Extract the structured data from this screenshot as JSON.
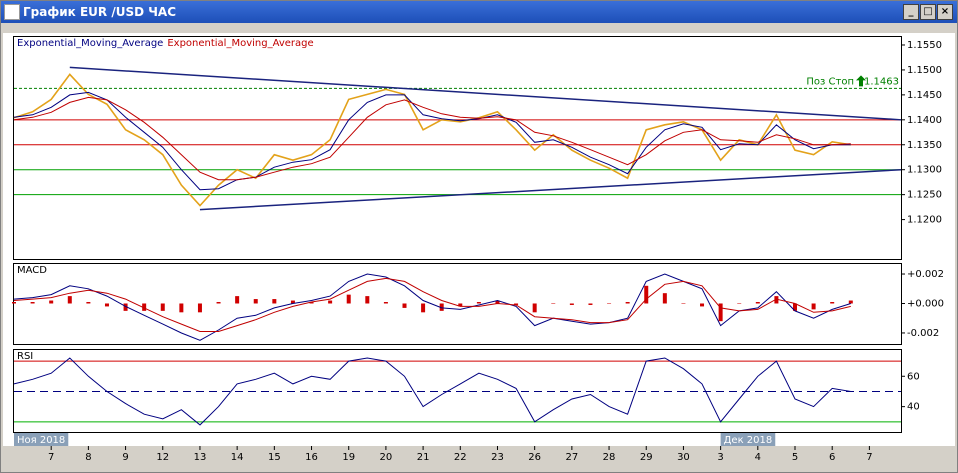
{
  "window": {
    "title": "График EUR /USD ЧАС"
  },
  "chart_data": [
    {
      "type": "line",
      "x": [
        -1,
        -0.5,
        0,
        0.5,
        1,
        1.5,
        2,
        2.5,
        3,
        3.5,
        4,
        4.5,
        5,
        5.5,
        6,
        6.5,
        7,
        7.5,
        8,
        8.5,
        9,
        9.5,
        10,
        10.5,
        11,
        11.5,
        12,
        12.5,
        13,
        13.5,
        14,
        14.5,
        15,
        15.5,
        16,
        16.5,
        17,
        17.5,
        18,
        18.5,
        19,
        19.5,
        20,
        20.5,
        21,
        21.5
      ],
      "xlim": [
        -1,
        22.85
      ],
      "ylim": [
        1.1121,
        1.1566
      ],
      "yticks": [
        {
          "value": 1.12,
          "label": "1.1200"
        },
        {
          "value": 1.125,
          "label": "1.1250"
        },
        {
          "value": 1.13,
          "label": "1.1300"
        },
        {
          "value": 1.135,
          "label": "1.1350"
        },
        {
          "value": 1.14,
          "label": "1.1400"
        },
        {
          "value": 1.145,
          "label": "1.1450"
        },
        {
          "value": 1.15,
          "label": "1.1500"
        },
        {
          "value": 1.155,
          "label": "1.1550"
        }
      ],
      "series": [
        {
          "color": "#e3a21a",
          "values": [
            1.1404,
            1.1416,
            1.1441,
            1.1491,
            1.1451,
            1.1431,
            1.138,
            1.136,
            1.133,
            1.1269,
            1.1228,
            1.1269,
            1.13,
            1.1283,
            1.133,
            1.1319,
            1.133,
            1.136,
            1.1441,
            1.1451,
            1.1461,
            1.1451,
            1.138,
            1.14,
            1.1396,
            1.1404,
            1.1416,
            1.138,
            1.1339,
            1.137,
            1.1339,
            1.1319,
            1.1303,
            1.1283,
            1.138,
            1.139,
            1.1396,
            1.138,
            1.1319,
            1.136,
            1.135,
            1.141,
            1.1339,
            1.133,
            1.1356,
            1.135
          ]
        },
        {
          "name": "Exponential_Moving_Average",
          "color": "#000080",
          "values": [
            1.1405,
            1.141,
            1.1425,
            1.145,
            1.1455,
            1.144,
            1.1405,
            1.1375,
            1.1345,
            1.13,
            1.126,
            1.1262,
            1.128,
            1.1285,
            1.1305,
            1.1315,
            1.132,
            1.134,
            1.14,
            1.1435,
            1.145,
            1.145,
            1.141,
            1.1402,
            1.1398,
            1.1402,
            1.141,
            1.1395,
            1.1355,
            1.136,
            1.1345,
            1.1325,
            1.131,
            1.1292,
            1.1345,
            1.138,
            1.1392,
            1.1385,
            1.134,
            1.1352,
            1.135,
            1.139,
            1.136,
            1.1342,
            1.135,
            1.135
          ]
        },
        {
          "name": "Exponential_Moving_Average",
          "color": "#c00000",
          "values": [
            1.14,
            1.1405,
            1.1415,
            1.1435,
            1.1445,
            1.144,
            1.142,
            1.1395,
            1.1365,
            1.133,
            1.1295,
            1.128,
            1.128,
            1.1285,
            1.1295,
            1.1305,
            1.1312,
            1.1325,
            1.1365,
            1.1405,
            1.143,
            1.144,
            1.1425,
            1.1412,
            1.1405,
            1.1403,
            1.1406,
            1.14,
            1.1375,
            1.1368,
            1.1355,
            1.134,
            1.1325,
            1.131,
            1.133,
            1.1358,
            1.1375,
            1.138,
            1.136,
            1.1358,
            1.1355,
            1.137,
            1.1362,
            1.135,
            1.135,
            1.1352
          ]
        }
      ],
      "hlines": [
        {
          "value": 1.14,
          "color": "#d00000"
        },
        {
          "value": 1.135,
          "color": "#d00000"
        },
        {
          "value": 1.13,
          "color": "#00a000"
        },
        {
          "value": 1.125,
          "color": "#00a000"
        }
      ],
      "trendlines": [
        {
          "x": [
            0.5,
            22.85
          ],
          "y": [
            1.1505,
            1.14
          ],
          "color": "#1a237e"
        },
        {
          "x": [
            4,
            22.85
          ],
          "y": [
            1.122,
            1.13
          ],
          "color": "#1a237e"
        }
      ],
      "annotations": [
        {
          "label": "Поз Стоп",
          "value": 1.1463,
          "color": "#008000"
        }
      ]
    },
    {
      "type": "line",
      "title": "MACD",
      "x": [
        -1,
        -0.5,
        0,
        0.5,
        1,
        1.5,
        2,
        2.5,
        3,
        3.5,
        4,
        4.5,
        5,
        5.5,
        6,
        6.5,
        7,
        7.5,
        8,
        8.5,
        9,
        9.5,
        10,
        10.5,
        11,
        11.5,
        12,
        12.5,
        13,
        13.5,
        14,
        14.5,
        15,
        15.5,
        16,
        16.5,
        17,
        17.5,
        18,
        18.5,
        19,
        19.5,
        20,
        20.5,
        21,
        21.5
      ],
      "xlim": [
        -1,
        22.85
      ],
      "ylim": [
        -0.00275,
        0.00268
      ],
      "yticks": [
        {
          "value": -0.002,
          "label": "-0.002"
        },
        {
          "value": 0,
          "label": "+0.000"
        },
        {
          "value": 0.002,
          "label": "+0.002"
        }
      ],
      "series": [
        {
          "style": "bar",
          "color": "#d00000",
          "values": [
            0.0001,
            0.0001,
            0.0002,
            0.0005,
            0.0001,
            -0.0002,
            -0.0005,
            -0.0005,
            -0.0005,
            -0.0006,
            -0.0006,
            0.0001,
            0.0005,
            0.0003,
            0.0003,
            0.0002,
            0.0001,
            0.0002,
            0.0006,
            0.0005,
            0.0001,
            -0.0003,
            -0.0006,
            -0.0005,
            -0.0002,
            0.0001,
            0.0002,
            -0.0001,
            -0.0006,
            0,
            -0.0001,
            -0.0001,
            0,
            0.0001,
            0.0012,
            0.0007,
            0,
            -0.0002,
            -0.0012,
            0,
            0.0001,
            0.0005,
            -0.0005,
            -0.0004,
            0.0001,
            0.0002
          ]
        },
        {
          "color": "#000080",
          "values": [
            0.0003,
            0.0004,
            0.0006,
            0.0012,
            0.001,
            0.0005,
            -0.0002,
            -0.0008,
            -0.0014,
            -0.002,
            -0.0025,
            -0.0018,
            -0.001,
            -0.0008,
            -0.0003,
            0,
            0.0002,
            0.0005,
            0.0015,
            0.002,
            0.0018,
            0.0012,
            0.0002,
            -0.0003,
            -0.0004,
            -0.0001,
            0.0002,
            -0.0002,
            -0.0015,
            -0.001,
            -0.0012,
            -0.0014,
            -0.0013,
            -0.001,
            0.0015,
            0.002,
            0.0015,
            0.001,
            -0.0015,
            -0.0005,
            -0.0003,
            0.0008,
            -0.0005,
            -0.001,
            -0.0004,
            0
          ]
        },
        {
          "color": "#c00000",
          "values": [
            0.0002,
            0.0003,
            0.0004,
            0.0007,
            0.0009,
            0.0007,
            0.0003,
            -0.0003,
            -0.0009,
            -0.0014,
            -0.0019,
            -0.0019,
            -0.0015,
            -0.0011,
            -0.0006,
            -0.0002,
            0.0001,
            0.0003,
            0.0009,
            0.0015,
            0.0017,
            0.0015,
            0.0008,
            0.0002,
            -0.0002,
            -0.0002,
            0,
            -0.0001,
            -0.0009,
            -0.001,
            -0.0011,
            -0.0013,
            -0.0013,
            -0.0011,
            0.0003,
            0.0013,
            0.0015,
            0.0012,
            -0.0003,
            -0.0005,
            -0.0004,
            0.0003,
            0,
            -0.0006,
            -0.0005,
            -0.0002
          ]
        }
      ]
    },
    {
      "type": "line",
      "title": "RSI",
      "x": [
        -1,
        -0.5,
        0,
        0.5,
        1,
        1.5,
        2,
        2.5,
        3,
        3.5,
        4,
        4.5,
        5,
        5.5,
        6,
        6.5,
        7,
        7.5,
        8,
        8.5,
        9,
        9.5,
        10,
        10.5,
        11,
        11.5,
        12,
        12.5,
        13,
        13.5,
        14,
        14.5,
        15,
        15.5,
        16,
        16.5,
        17,
        17.5,
        18,
        18.5,
        19,
        19.5,
        20,
        20.5,
        21,
        21.5
      ],
      "xlim": [
        -1,
        22.85
      ],
      "ylim": [
        23.3,
        77.3
      ],
      "yticks": [
        40,
        60
      ],
      "series": [
        {
          "color": "#000080",
          "values": [
            55,
            58,
            62,
            72,
            60,
            50,
            42,
            35,
            32,
            38,
            28,
            40,
            55,
            58,
            62,
            55,
            60,
            58,
            70,
            72,
            70,
            60,
            40,
            48,
            55,
            62,
            58,
            52,
            30,
            38,
            45,
            48,
            40,
            35,
            70,
            72,
            65,
            55,
            30,
            45,
            60,
            70,
            45,
            40,
            52,
            50
          ]
        }
      ],
      "hlines": [
        {
          "value": 70,
          "color": "#d00000"
        },
        {
          "value": 50,
          "color": "#000080",
          "dashed": true
        },
        {
          "value": 30,
          "color": "#00b000"
        }
      ],
      "xticks": [
        {
          "value": 0,
          "label": "7"
        },
        {
          "value": 1,
          "label": "8"
        },
        {
          "value": 2,
          "label": "9"
        },
        {
          "value": 3,
          "label": "12"
        },
        {
          "value": 4,
          "label": "13"
        },
        {
          "value": 5,
          "label": "14"
        },
        {
          "value": 6,
          "label": "15"
        },
        {
          "value": 7,
          "label": "16"
        },
        {
          "value": 8,
          "label": "19"
        },
        {
          "value": 9,
          "label": "20"
        },
        {
          "value": 10,
          "label": "21"
        },
        {
          "value": 11,
          "label": "22"
        },
        {
          "value": 12,
          "label": "23"
        },
        {
          "value": 13,
          "label": "26"
        },
        {
          "value": 14,
          "label": "27"
        },
        {
          "value": 15,
          "label": "28"
        },
        {
          "value": 16,
          "label": "29"
        },
        {
          "value": 17,
          "label": "30"
        },
        {
          "value": 18,
          "label": "3"
        },
        {
          "value": 19,
          "label": "4"
        },
        {
          "value": 20,
          "label": "5"
        },
        {
          "value": 21,
          "label": "6"
        },
        {
          "value": 22,
          "label": "7"
        }
      ],
      "period_labels": [
        {
          "value": -1,
          "label": "Ноя 2018"
        },
        {
          "value": 18,
          "label": "Дек 2018"
        }
      ]
    }
  ]
}
